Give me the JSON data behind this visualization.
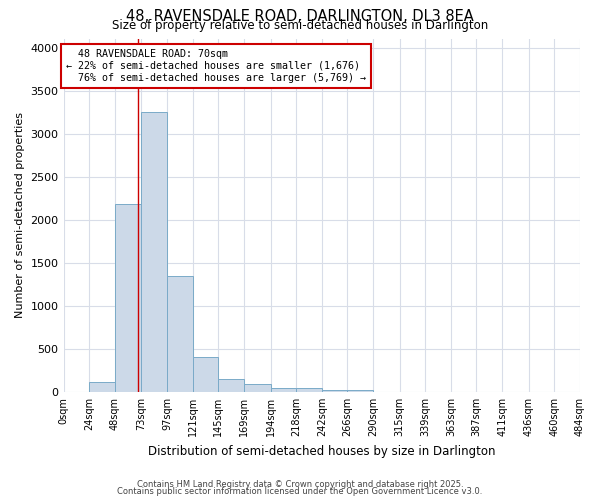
{
  "title": "48, RAVENSDALE ROAD, DARLINGTON, DL3 8EA",
  "subtitle": "Size of property relative to semi-detached houses in Darlington",
  "xlabel": "Distribution of semi-detached houses by size in Darlington",
  "ylabel": "Number of semi-detached properties",
  "property_size": 70,
  "property_label": "48 RAVENSDALE ROAD: 70sqm",
  "pct_smaller": 22,
  "pct_larger": 76,
  "count_smaller": 1676,
  "count_larger": 5769,
  "bin_edges": [
    0,
    24,
    48,
    73,
    97,
    121,
    145,
    169,
    194,
    218,
    242,
    266,
    290,
    315,
    339,
    363,
    387,
    411,
    436,
    460,
    484
  ],
  "bin_counts": [
    0,
    110,
    2180,
    3250,
    1350,
    400,
    155,
    90,
    40,
    40,
    25,
    20,
    5,
    2,
    1,
    0,
    0,
    0,
    0,
    0
  ],
  "bar_color": "#ccd9e8",
  "bar_edge_color": "#7aaac8",
  "red_line_color": "#cc0000",
  "background_color": "#ffffff",
  "grid_color": "#d8dde8",
  "ylim": [
    0,
    4100
  ],
  "yticks": [
    0,
    500,
    1000,
    1500,
    2000,
    2500,
    3000,
    3500,
    4000
  ],
  "footer_line1": "Contains HM Land Registry data © Crown copyright and database right 2025.",
  "footer_line2": "Contains public sector information licensed under the Open Government Licence v3.0."
}
